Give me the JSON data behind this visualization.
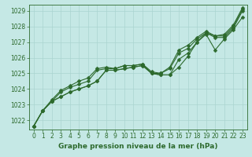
{
  "xlabel": "Graphe pression niveau de la mer (hPa)",
  "background_color": "#c5e8e5",
  "plot_bg_color": "#c5e8e5",
  "grid_color": "#aad4d0",
  "line_color": "#2d6a2d",
  "text_color": "#2d6a2d",
  "ylim": [
    1021.4,
    1029.4
  ],
  "xlim": [
    -0.5,
    23.5
  ],
  "yticks": [
    1022,
    1023,
    1024,
    1025,
    1026,
    1027,
    1028,
    1029
  ],
  "xticks": [
    0,
    1,
    2,
    3,
    4,
    5,
    6,
    7,
    8,
    9,
    10,
    11,
    12,
    13,
    14,
    15,
    16,
    17,
    18,
    19,
    20,
    21,
    22,
    23
  ],
  "series": [
    [
      1021.6,
      1022.6,
      1023.2,
      1023.5,
      1023.8,
      1024.0,
      1024.2,
      1024.5,
      1025.2,
      1025.2,
      1025.3,
      1025.4,
      1025.5,
      1025.0,
      1024.9,
      1024.9,
      1025.4,
      1026.1,
      1027.0,
      1027.5,
      1026.5,
      1027.2,
      1027.8,
      1028.6
    ],
    [
      1021.6,
      1022.6,
      1023.2,
      1023.5,
      1023.8,
      1024.0,
      1024.2,
      1024.5,
      1025.2,
      1025.2,
      1025.3,
      1025.4,
      1025.5,
      1025.0,
      1024.9,
      1024.9,
      1025.9,
      1026.3,
      1027.0,
      1027.6,
      1027.3,
      1027.3,
      1027.9,
      1029.0
    ],
    [
      1021.6,
      1022.6,
      1023.2,
      1023.8,
      1024.1,
      1024.3,
      1024.5,
      1025.2,
      1025.3,
      1025.3,
      1025.5,
      1025.5,
      1025.6,
      1025.1,
      1025.0,
      1025.3,
      1026.3,
      1026.6,
      1027.2,
      1027.6,
      1027.4,
      1027.4,
      1028.0,
      1029.1
    ],
    [
      1021.6,
      1022.6,
      1023.3,
      1023.9,
      1024.2,
      1024.5,
      1024.7,
      1025.3,
      1025.4,
      1025.3,
      1025.5,
      1025.5,
      1025.6,
      1025.0,
      1025.0,
      1025.4,
      1026.5,
      1026.8,
      1027.3,
      1027.7,
      1027.4,
      1027.5,
      1028.1,
      1029.2
    ]
  ],
  "marker": "D",
  "marker_size": 2.5,
  "line_width": 0.8,
  "xlabel_fontsize": 6.5,
  "tick_fontsize": 5.5
}
